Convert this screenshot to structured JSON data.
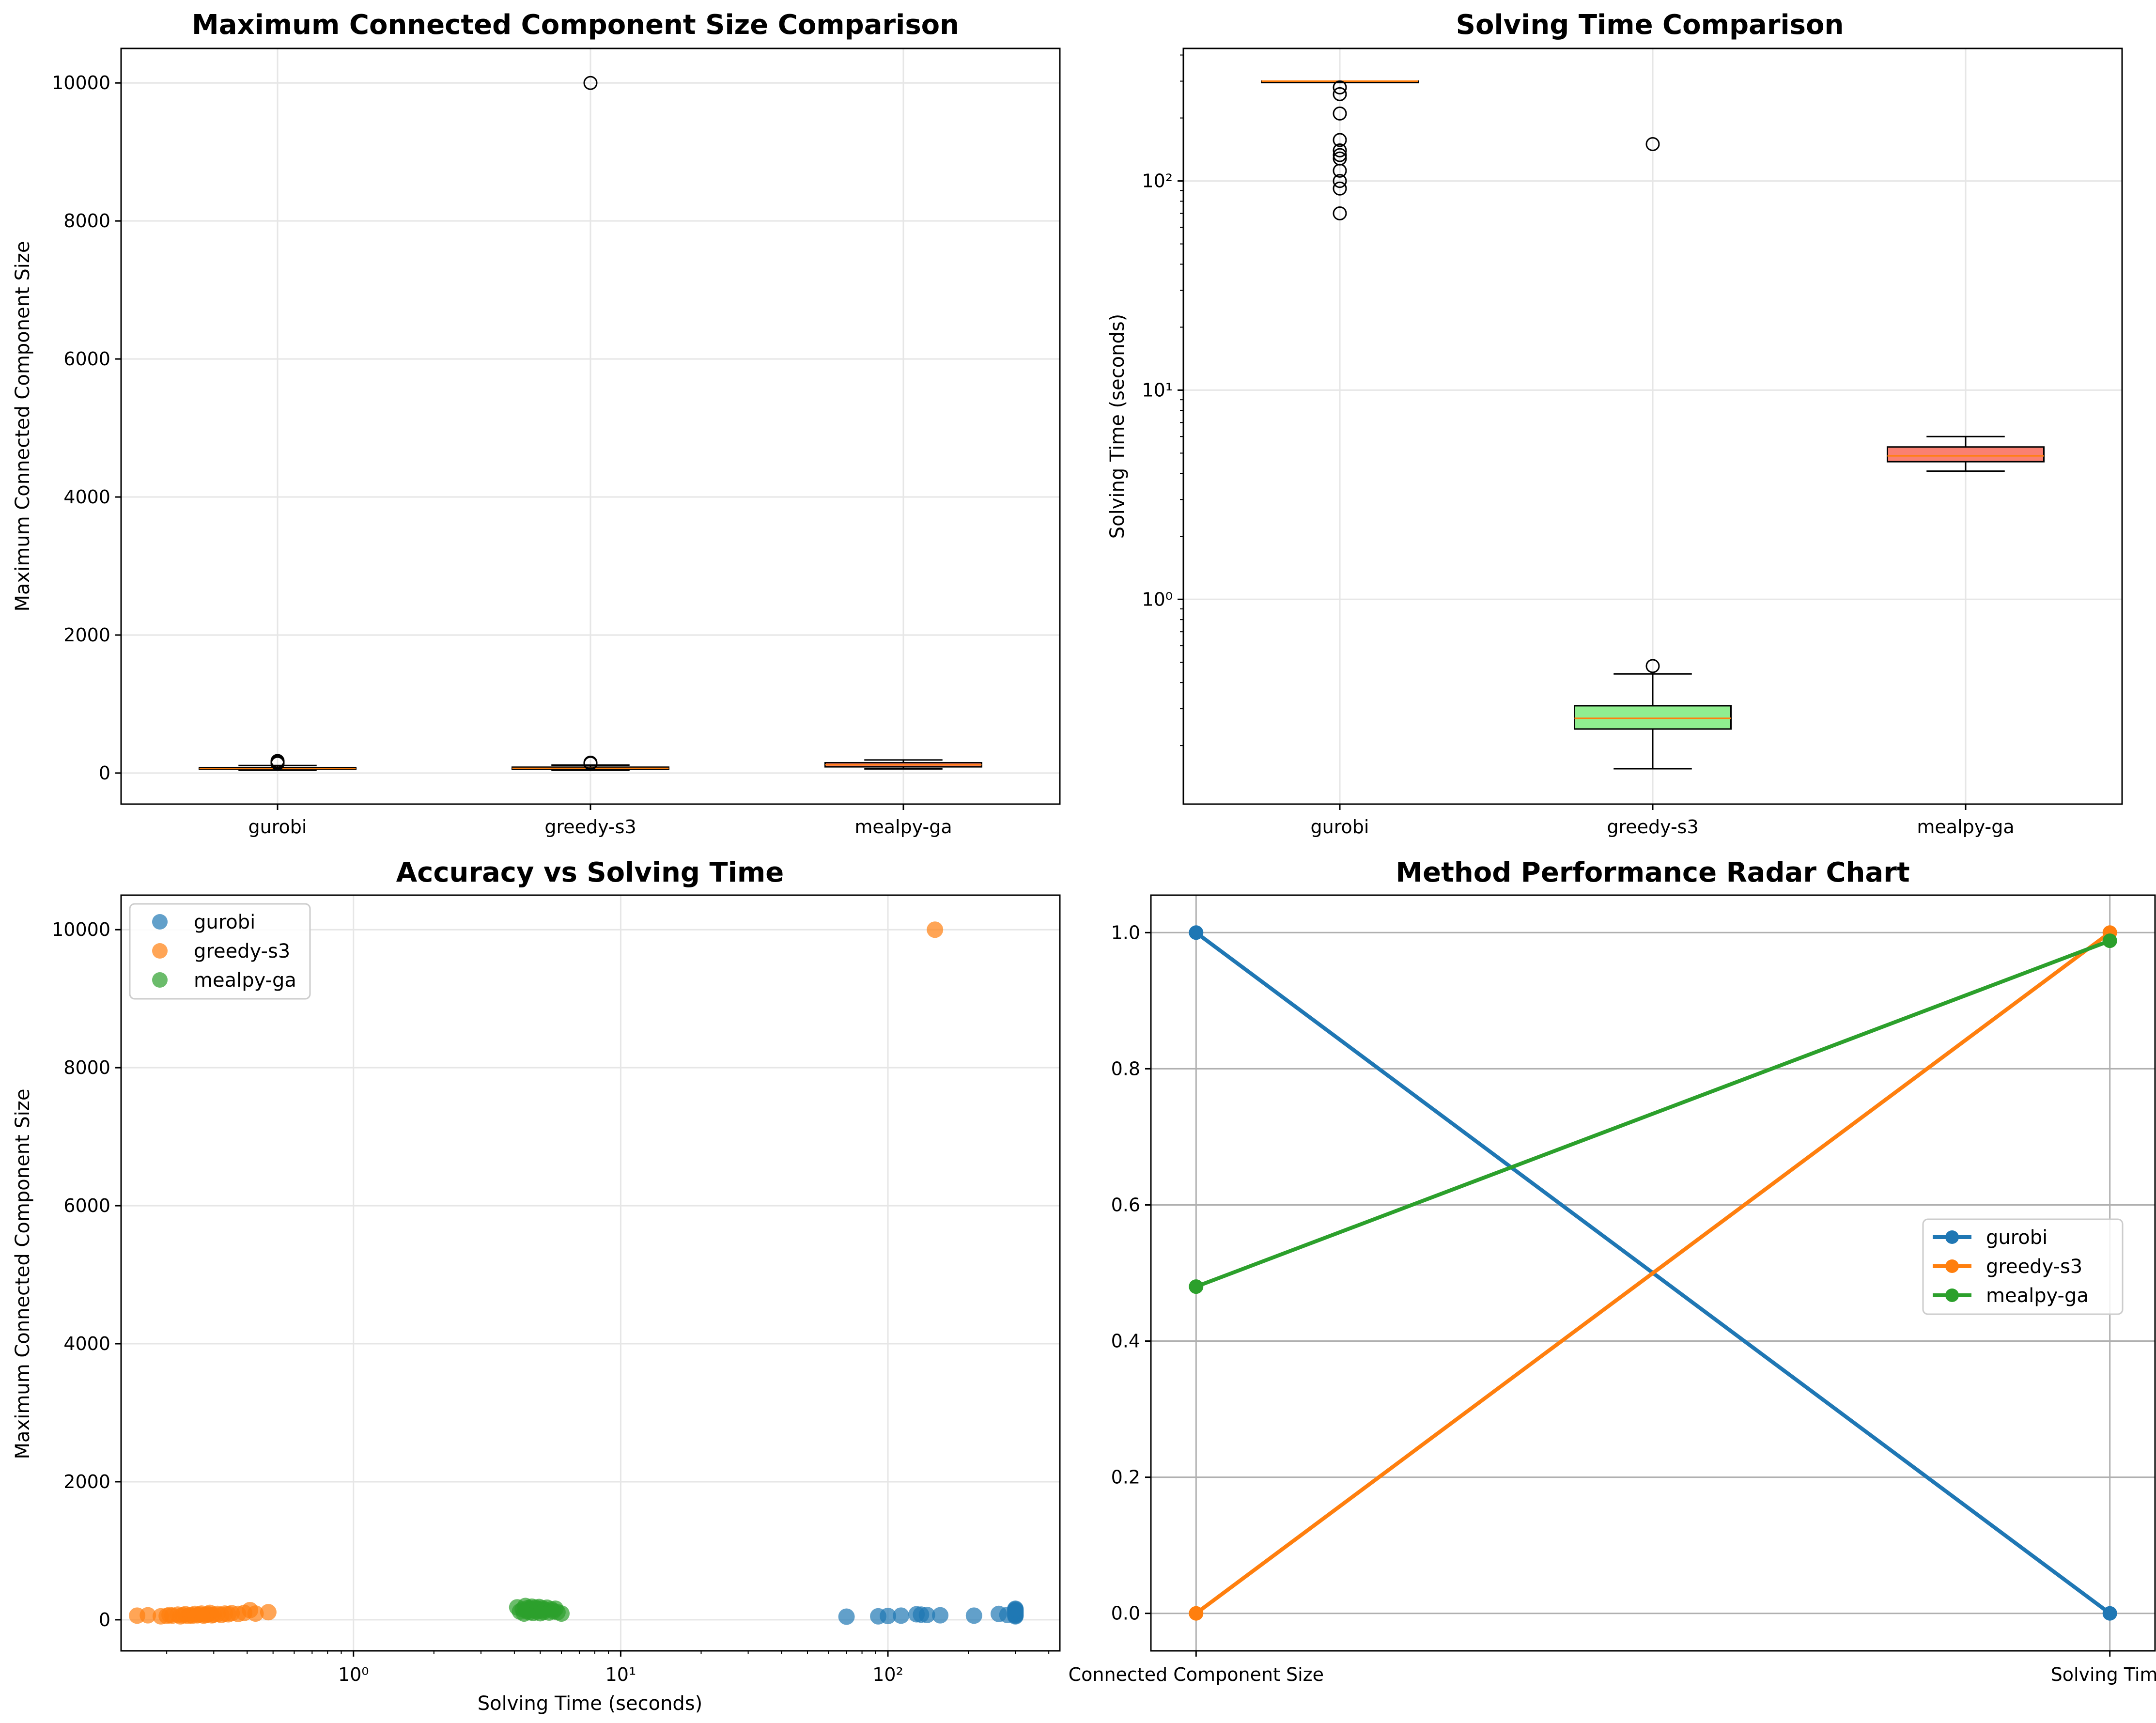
{
  "colors": {
    "gurobi": "#1f77b4",
    "greedy_s3": "#ff7f0e",
    "mealpy_ga": "#2ca02c",
    "box_gurobi": "#87ceeb",
    "box_greedy": "#90ee90",
    "box_mealpy": "#fa8072",
    "median": "#ff7f0e",
    "grid": "#e6e6e6",
    "radar_grid": "#b0b0b0"
  },
  "chart_data": [
    {
      "id": "box_mccs",
      "type": "box",
      "title": "Maximum Connected Component Size Comparison",
      "xlabel": "",
      "ylabel": "Maximum Connected Component Size",
      "categories": [
        "gurobi",
        "greedy-s3",
        "mealpy-ga"
      ],
      "ylim": [
        -450,
        10500
      ],
      "yticks": [
        0,
        2000,
        4000,
        6000,
        8000,
        10000
      ],
      "ytick_labels": [
        "0",
        "2000",
        "4000",
        "6000",
        "8000",
        "10000"
      ],
      "grid": true,
      "boxes": [
        {
          "whisker_low": 40,
          "q1": 55,
          "median": 65,
          "q3": 80,
          "whisker_high": 110,
          "fliers": [
            140,
            160,
            175
          ]
        },
        {
          "whisker_low": 40,
          "q1": 55,
          "median": 68,
          "q3": 85,
          "whisker_high": 115,
          "fliers": [
            140,
            150,
            10000
          ]
        },
        {
          "whisker_low": 60,
          "q1": 90,
          "median": 120,
          "q3": 150,
          "whisker_high": 190,
          "fliers": []
        }
      ]
    },
    {
      "id": "box_time",
      "type": "box",
      "title": "Solving Time Comparison",
      "xlabel": "",
      "ylabel": "Solving Time (seconds)",
      "yscale": "log",
      "categories": [
        "gurobi",
        "greedy-s3",
        "mealpy-ga"
      ],
      "ylim": [
        0.105,
        430
      ],
      "yticks": [
        1,
        10,
        100
      ],
      "ytick_labels": [
        "10⁰",
        "10¹",
        "10²"
      ],
      "grid": true,
      "boxes": [
        {
          "whisker_low": 300,
          "q1": 300,
          "median": 300,
          "q3": 300,
          "whisker_high": 300,
          "fliers": [
            70,
            92,
            100,
            112,
            128,
            133,
            140,
            157,
            210,
            260,
            280
          ]
        },
        {
          "whisker_low": 0.155,
          "q1": 0.24,
          "median": 0.27,
          "q3": 0.31,
          "whisker_high": 0.44,
          "fliers": [
            0.48,
            150
          ]
        },
        {
          "whisker_low": 4.1,
          "q1": 4.55,
          "median": 4.85,
          "q3": 5.35,
          "whisker_high": 6.0,
          "fliers": []
        }
      ]
    },
    {
      "id": "scatter",
      "type": "scatter",
      "title": "Accuracy vs Solving Time",
      "xlabel": "Solving Time (seconds)",
      "ylabel": "Maximum Connected Component Size",
      "xscale": "log",
      "xlim": [
        0.135,
        440
      ],
      "ylim": [
        -450,
        10500
      ],
      "xticks": [
        1,
        10,
        100
      ],
      "xtick_labels": [
        "10⁰",
        "10¹",
        "10²"
      ],
      "yticks": [
        0,
        2000,
        4000,
        6000,
        8000,
        10000
      ],
      "ytick_labels": [
        "0",
        "2000",
        "4000",
        "6000",
        "8000",
        "10000"
      ],
      "grid": true,
      "legend_position": "upper-left",
      "series": [
        {
          "name": "gurobi",
          "color_key": "gurobi",
          "points": [
            [
              70,
              45
            ],
            [
              92,
              50
            ],
            [
              100,
              55
            ],
            [
              112,
              60
            ],
            [
              128,
              80
            ],
            [
              133,
              75
            ],
            [
              140,
              70
            ],
            [
              157,
              65
            ],
            [
              210,
              60
            ],
            [
              260,
              85
            ],
            [
              280,
              70
            ],
            [
              300,
              50
            ],
            [
              300,
              60
            ],
            [
              300,
              70
            ],
            [
              300,
              80
            ],
            [
              300,
              90
            ],
            [
              300,
              100
            ],
            [
              300,
              110
            ],
            [
              300,
              120
            ],
            [
              300,
              130
            ],
            [
              300,
              140
            ],
            [
              300,
              150
            ],
            [
              300,
              160
            ]
          ]
        },
        {
          "name": "greedy-s3",
          "color_key": "greedy_s3",
          "points": [
            [
              0.155,
              60
            ],
            [
              0.17,
              65
            ],
            [
              0.19,
              50
            ],
            [
              0.2,
              55
            ],
            [
              0.205,
              70
            ],
            [
              0.21,
              60
            ],
            [
              0.22,
              75
            ],
            [
              0.225,
              50
            ],
            [
              0.23,
              65
            ],
            [
              0.235,
              80
            ],
            [
              0.24,
              55
            ],
            [
              0.245,
              70
            ],
            [
              0.25,
              60
            ],
            [
              0.255,
              85
            ],
            [
              0.26,
              65
            ],
            [
              0.265,
              75
            ],
            [
              0.27,
              90
            ],
            [
              0.275,
              60
            ],
            [
              0.28,
              70
            ],
            [
              0.285,
              80
            ],
            [
              0.29,
              100
            ],
            [
              0.295,
              65
            ],
            [
              0.3,
              75
            ],
            [
              0.31,
              85
            ],
            [
              0.32,
              70
            ],
            [
              0.33,
              90
            ],
            [
              0.34,
              80
            ],
            [
              0.35,
              95
            ],
            [
              0.37,
              85
            ],
            [
              0.39,
              100
            ],
            [
              0.41,
              140
            ],
            [
              0.43,
              90
            ],
            [
              0.48,
              110
            ],
            [
              150,
              10000
            ]
          ]
        },
        {
          "name": "mealpy-ga",
          "color_key": "mealpy_ga",
          "points": [
            [
              4.1,
              180
            ],
            [
              4.2,
              120
            ],
            [
              4.3,
              150
            ],
            [
              4.35,
              90
            ],
            [
              4.4,
              200
            ],
            [
              4.45,
              130
            ],
            [
              4.5,
              170
            ],
            [
              4.55,
              110
            ],
            [
              4.6,
              160
            ],
            [
              4.65,
              190
            ],
            [
              4.7,
              100
            ],
            [
              4.75,
              140
            ],
            [
              4.8,
              175
            ],
            [
              4.85,
              120
            ],
            [
              4.9,
              155
            ],
            [
              4.95,
              185
            ],
            [
              5.0,
              95
            ],
            [
              5.05,
              135
            ],
            [
              5.1,
              165
            ],
            [
              5.15,
              115
            ],
            [
              5.2,
              145
            ],
            [
              5.3,
              175
            ],
            [
              5.4,
              105
            ],
            [
              5.5,
              150
            ],
            [
              5.6,
              125
            ],
            [
              5.7,
              160
            ],
            [
              5.8,
              110
            ],
            [
              6.0,
              90
            ]
          ]
        }
      ]
    },
    {
      "id": "radar",
      "type": "line",
      "title": "Method Performance Radar Chart",
      "categories": [
        "Connected Component Size",
        "Solving Time"
      ],
      "ylim": [
        -0.055,
        1.055
      ],
      "yticks": [
        0.0,
        0.2,
        0.4,
        0.6,
        0.8,
        1.0
      ],
      "ytick_labels": [
        "0.0",
        "0.2",
        "0.4",
        "0.6",
        "0.8",
        "1.0"
      ],
      "grid": true,
      "legend_position": "center-right",
      "series": [
        {
          "name": "gurobi",
          "color_key": "gurobi",
          "values": [
            1.0,
            0.0
          ]
        },
        {
          "name": "greedy-s3",
          "color_key": "greedy_s3",
          "values": [
            0.0,
            1.0
          ]
        },
        {
          "name": "mealpy-ga",
          "color_key": "mealpy_ga",
          "values": [
            0.48,
            0.988
          ]
        }
      ]
    }
  ]
}
